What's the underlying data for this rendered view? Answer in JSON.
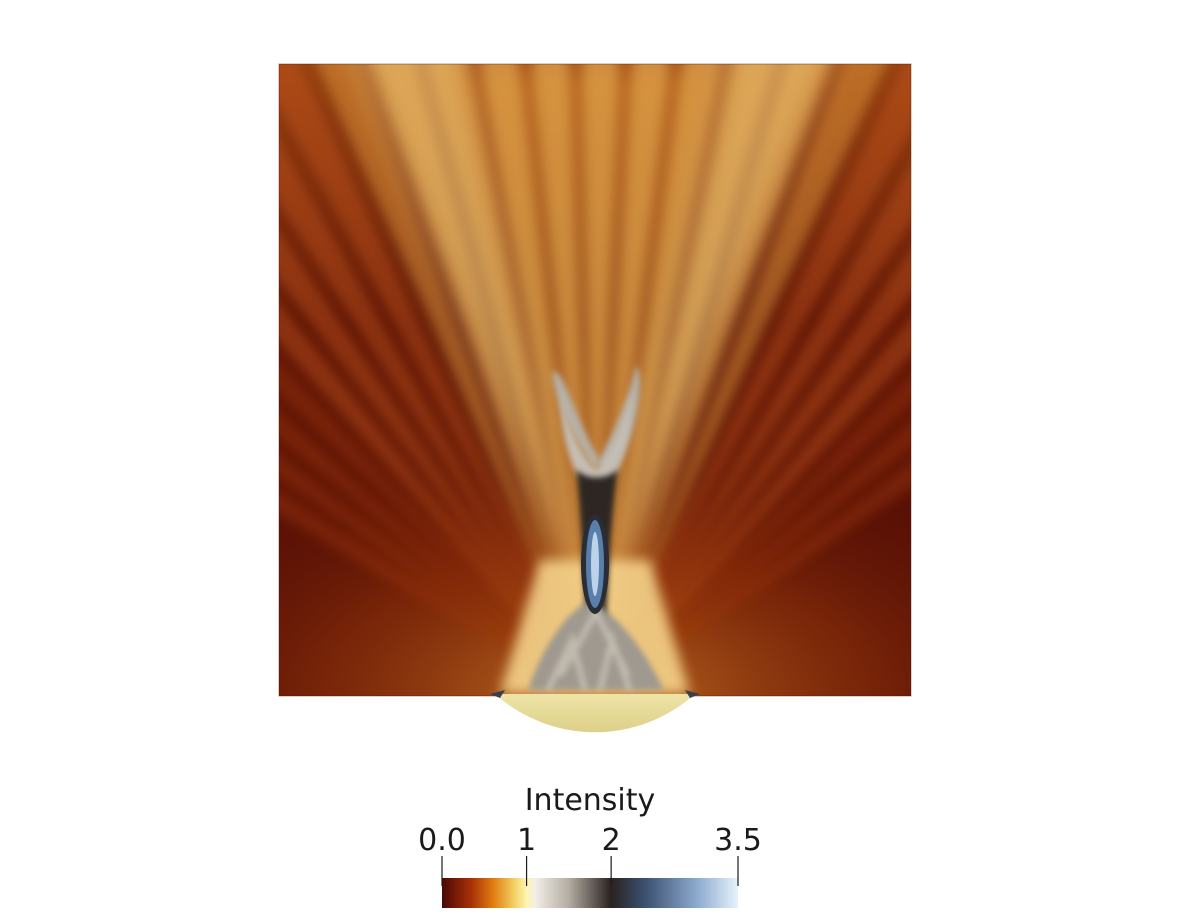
{
  "figure": {
    "colorbar": {
      "title": "Intensity",
      "ticks": [
        {
          "label": "0.0",
          "value": 0.0
        },
        {
          "label": "1",
          "value": 1.0
        },
        {
          "label": "2",
          "value": 2.0
        },
        {
          "label": "3.5",
          "value": 3.5
        }
      ],
      "range": [
        0.0,
        3.5
      ],
      "colors": [
        {
          "value": 0.0,
          "color": "#4a0705"
        },
        {
          "value": 0.35,
          "color": "#a83206"
        },
        {
          "value": 0.6,
          "color": "#e07a10"
        },
        {
          "value": 0.85,
          "color": "#f2cf62"
        },
        {
          "value": 1.0,
          "color": "#fff4b0"
        },
        {
          "value": 1.1,
          "color": "#f1efe7"
        },
        {
          "value": 1.5,
          "color": "#b3aca2"
        },
        {
          "value": 2.0,
          "color": "#2a2220"
        },
        {
          "value": 2.4,
          "color": "#3c5070"
        },
        {
          "value": 3.0,
          "color": "#8aa8cc"
        },
        {
          "value": 3.5,
          "color": "#e6f2fb"
        }
      ]
    },
    "field_colors": {
      "background": "#5a1206",
      "beam_orange": "#d77a1a",
      "beam_yellow": "#f0c46a",
      "grey": "#b1aba0",
      "dark": "#2b2422",
      "blue": "#6f95c2",
      "lens": "#e6db94"
    }
  }
}
